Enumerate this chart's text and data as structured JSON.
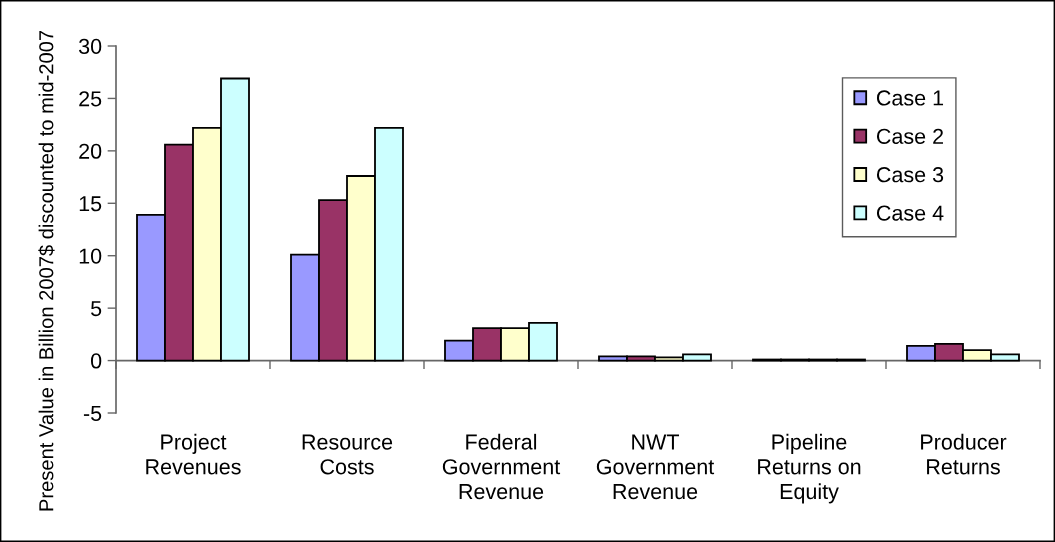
{
  "chart_data": {
    "type": "bar",
    "ylabel": "Present Value in Billion 2007$ discounted to mid-2007",
    "categories": [
      "Project\nRevenues",
      "Resource\nCosts",
      "Federal\nGovernment\nRevenue",
      "NWT\nGovernment\nRevenue",
      "Pipeline\nReturns on\nEquity",
      "Producer\nReturns"
    ],
    "series": [
      {
        "name": "Case 1",
        "color": "#9999ff",
        "values": [
          13.9,
          10.1,
          1.9,
          0.4,
          0.1,
          1.4
        ]
      },
      {
        "name": "Case 2",
        "color": "#993366",
        "values": [
          20.6,
          15.3,
          3.1,
          0.4,
          0.1,
          1.6
        ]
      },
      {
        "name": "Case 3",
        "color": "#ffffcc",
        "values": [
          22.2,
          17.6,
          3.1,
          0.3,
          0.1,
          1.0
        ]
      },
      {
        "name": "Case 4",
        "color": "#ccffff",
        "values": [
          26.9,
          22.2,
          3.6,
          0.6,
          0.1,
          0.6
        ]
      }
    ],
    "ylim": [
      -5,
      30
    ],
    "yticks": [
      -5,
      0,
      5,
      10,
      15,
      20,
      25,
      30
    ],
    "legend": "top right"
  }
}
